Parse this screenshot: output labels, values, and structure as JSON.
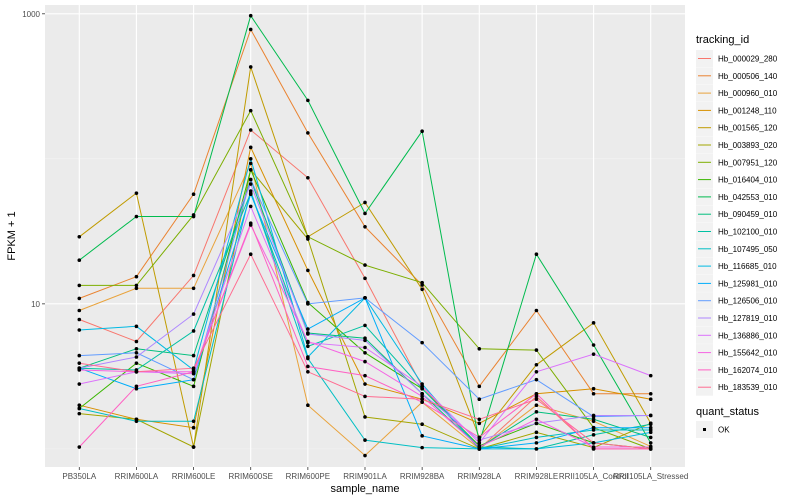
{
  "chart_data": {
    "type": "line",
    "title": "",
    "xlabel": "sample_name",
    "ylabel": "FPKM + 1",
    "yscale": "log10",
    "ylim": [
      0.75,
      1150
    ],
    "yticks": [
      10,
      1000
    ],
    "ytick_labels": [
      "10",
      "1000"
    ],
    "grid": true,
    "legend_position": "right",
    "categories": [
      "PB350LA",
      "RRIM600LA",
      "RRIM600LE",
      "RRIM600SE",
      "RRIM600PE",
      "RRIM901LA",
      "RRIM928BA",
      "RRIM928LA",
      "RRIM928LE",
      "RRII105LA_Control",
      "RRII105LA_Stressed"
    ],
    "legend": {
      "color_title": "tracking_id",
      "shape_title": "quant_status",
      "shape_entries": [
        "OK"
      ]
    },
    "series": [
      {
        "name": "Hb_000029_280",
        "color": "#F8766D",
        "values": [
          7.8,
          5.5,
          15.7,
          158,
          74,
          15.0,
          2.7,
          1.0,
          2.3,
          1.0,
          1.0
        ]
      },
      {
        "name": "Hb_000506_140",
        "color": "#EA8331",
        "values": [
          10.9,
          15.4,
          57,
          780,
          151,
          34,
          13.5,
          2.7,
          9.0,
          2.4,
          2.4
        ]
      },
      {
        "name": "Hb_000960_010",
        "color": "#E9A33C",
        "values": [
          9.0,
          12.8,
          12.8,
          93,
          2.0,
          0.9,
          2.1,
          1.0,
          2.0,
          1.55,
          1.04
        ]
      },
      {
        "name": "Hb_001248_110",
        "color": "#D89000",
        "values": [
          2.0,
          1.6,
          1.4,
          120,
          17.0,
          2.8,
          2.2,
          1.5,
          2.4,
          2.6,
          2.2
        ]
      },
      {
        "name": "Hb_001565_120",
        "color": "#C09B00",
        "values": [
          29,
          58,
          1.03,
          430,
          29,
          50,
          12.6,
          1.2,
          3.8,
          7.4,
          1.5
        ]
      },
      {
        "name": "Hb_003893_020",
        "color": "#A3A500",
        "values": [
          1.75,
          1.6,
          1.03,
          84,
          28,
          1.66,
          1.48,
          1.0,
          1.3,
          1.02,
          1.5
        ]
      },
      {
        "name": "Hb_007951_120",
        "color": "#7CAE00",
        "values": [
          13.4,
          13.4,
          41,
          215,
          29,
          18.5,
          14.0,
          4.9,
          4.8,
          1.4,
          1.0
        ]
      },
      {
        "name": "Hb_016404_010",
        "color": "#39B600",
        "values": [
          1.9,
          3.9,
          2.7,
          84,
          10.2,
          4.6,
          2.6,
          1.05,
          1.5,
          1.1,
          1.0
        ]
      },
      {
        "name": "Hb_042553_010",
        "color": "#00BB4E",
        "values": [
          20,
          40,
          40,
          970,
          253,
          42,
          155,
          1.1,
          22,
          5.2,
          1.1
        ]
      },
      {
        "name": "Hb_090459_010",
        "color": "#00BF7D",
        "values": [
          3.6,
          4.9,
          4.4,
          72,
          6.3,
          5.8,
          2.4,
          1.02,
          1.8,
          1.6,
          1.2
        ]
      },
      {
        "name": "Hb_102100_010",
        "color": "#00C1A3",
        "values": [
          3.6,
          3.5,
          6.5,
          58,
          5.1,
          7.1,
          2.6,
          1.03,
          1.0,
          1.25,
          1.48
        ]
      },
      {
        "name": "Hb_107495_050",
        "color": "#00BFC4",
        "values": [
          1.9,
          1.55,
          1.55,
          60,
          4.2,
          1.15,
          1.02,
          1.0,
          1.2,
          1.35,
          1.35
        ]
      },
      {
        "name": "Hb_116685_010",
        "color": "#00B9E3",
        "values": [
          6.6,
          7.0,
          3.5,
          100,
          4.3,
          11.0,
          2.8,
          1.0,
          1.0,
          1.1,
          1.3
        ]
      },
      {
        "name": "Hb_125981_010",
        "color": "#00ADFA",
        "values": [
          3.6,
          2.6,
          3.0,
          57,
          6.7,
          11.0,
          1.23,
          1.0,
          1.1,
          1.4,
          1.4
        ]
      },
      {
        "name": "Hb_126506_010",
        "color": "#619CFF",
        "values": [
          4.4,
          4.6,
          3.0,
          72,
          10.0,
          11.0,
          5.4,
          2.2,
          3.0,
          1.67,
          1.7
        ]
      },
      {
        "name": "Hb_127819_010",
        "color": "#AE87FF",
        "values": [
          3.6,
          4.3,
          8.5,
          67,
          6.2,
          5.6,
          2.4,
          1.15,
          1.5,
          1.7,
          1.7
        ]
      },
      {
        "name": "Hb_136886_010",
        "color": "#DB72FB",
        "values": [
          2.8,
          3.4,
          3.3,
          47,
          5.4,
          5.0,
          2.7,
          1.1,
          3.4,
          4.5,
          3.2
        ]
      },
      {
        "name": "Hb_155642_010",
        "color": "#F564E3",
        "values": [
          3.5,
          3.4,
          3.4,
          35,
          5.5,
          4.0,
          2.3,
          1.03,
          1.6,
          1.03,
          1.03
        ]
      },
      {
        "name": "Hb_162074_010",
        "color": "#FF61C3",
        "values": [
          1.03,
          2.7,
          3.4,
          36,
          3.7,
          3.2,
          2.1,
          1.2,
          2.4,
          1.0,
          1.0
        ]
      },
      {
        "name": "Hb_183539_010",
        "color": "#FF6C91",
        "values": [
          3.9,
          3.4,
          3.6,
          22,
          3.4,
          2.3,
          2.2,
          1.6,
          2.2,
          1.1,
          1.0
        ]
      }
    ]
  }
}
